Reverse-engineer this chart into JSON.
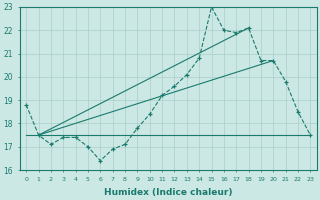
{
  "xlabel": "Humidex (Indice chaleur)",
  "x_values": [
    0,
    1,
    2,
    3,
    4,
    5,
    6,
    7,
    8,
    9,
    10,
    11,
    12,
    13,
    14,
    15,
    16,
    17,
    18,
    19,
    20,
    21,
    22,
    23
  ],
  "line_main_y": [
    18.8,
    17.5,
    17.1,
    17.4,
    17.4,
    17.0,
    16.4,
    16.9,
    17.1,
    17.8,
    18.4,
    19.2,
    19.6,
    20.1,
    20.8,
    23.0,
    22.0,
    21.9,
    22.1,
    20.7,
    20.7,
    19.8,
    18.5,
    17.5
  ],
  "line_flat_y": 17.5,
  "trend1_x": [
    1,
    20
  ],
  "trend1_y": [
    17.5,
    20.7
  ],
  "trend2_x": [
    1,
    18
  ],
  "trend2_y": [
    17.5,
    22.1
  ],
  "line_color": "#1a7a6e",
  "bg_color": "#cce8e4",
  "grid_color": "#aacfcb",
  "ylim": [
    16,
    23
  ],
  "xlim": [
    -0.5,
    23.5
  ],
  "yticks": [
    16,
    17,
    18,
    19,
    20,
    21,
    22,
    23
  ],
  "xticks": [
    0,
    1,
    2,
    3,
    4,
    5,
    6,
    7,
    8,
    9,
    10,
    11,
    12,
    13,
    14,
    15,
    16,
    17,
    18,
    19,
    20,
    21,
    22,
    23
  ]
}
